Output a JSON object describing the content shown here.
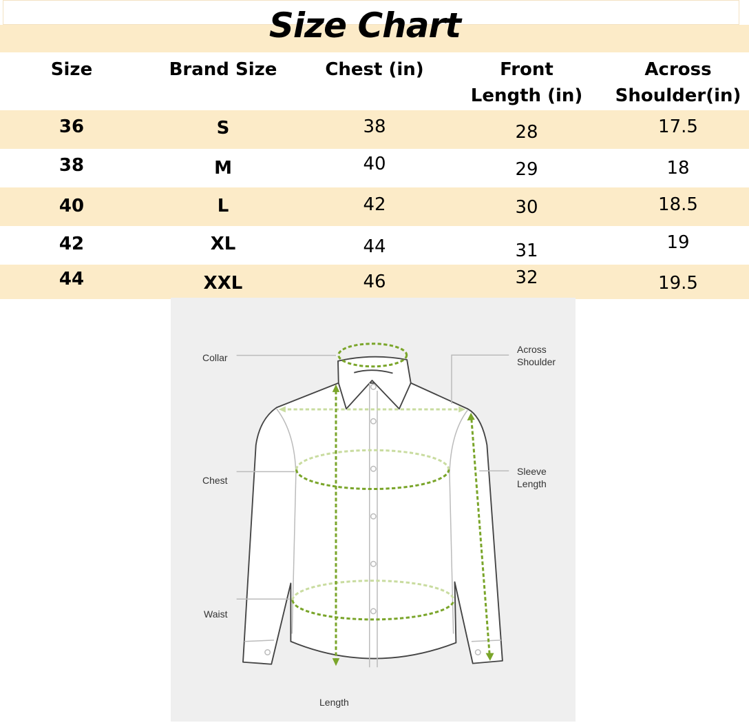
{
  "title": "Size Chart",
  "table": {
    "headers": [
      "Size",
      "Brand Size",
      "Chest (in)",
      "Front Length (in)",
      "Across Shoulder(in)"
    ],
    "header_lines": [
      [
        "Size"
      ],
      [
        "Brand Size"
      ],
      [
        "Chest (in)"
      ],
      [
        "Front",
        "Length (in)"
      ],
      [
        "Across",
        "Shoulder(in)"
      ]
    ],
    "rows": [
      [
        "36",
        "S",
        "38",
        "28",
        "17.5"
      ],
      [
        "38",
        "M",
        "40",
        "29",
        "18"
      ],
      [
        "40",
        "L",
        "42",
        "30",
        "18.5"
      ],
      [
        "42",
        "XL",
        "44",
        "31",
        "19"
      ],
      [
        "44",
        "XXL",
        "46",
        "32",
        "19.5"
      ]
    ]
  },
  "diagram": {
    "labels": {
      "collar": "Collar",
      "chest": "Chest",
      "waist": "Waist",
      "length": "Length",
      "across_shoulder": [
        "Across",
        "Shoulder"
      ],
      "sleeve_length": [
        "Sleeve",
        "Length"
      ]
    }
  },
  "colors": {
    "band": "#fcebc8",
    "measure": "#7aa52a",
    "diagram_bg": "#efefef"
  }
}
